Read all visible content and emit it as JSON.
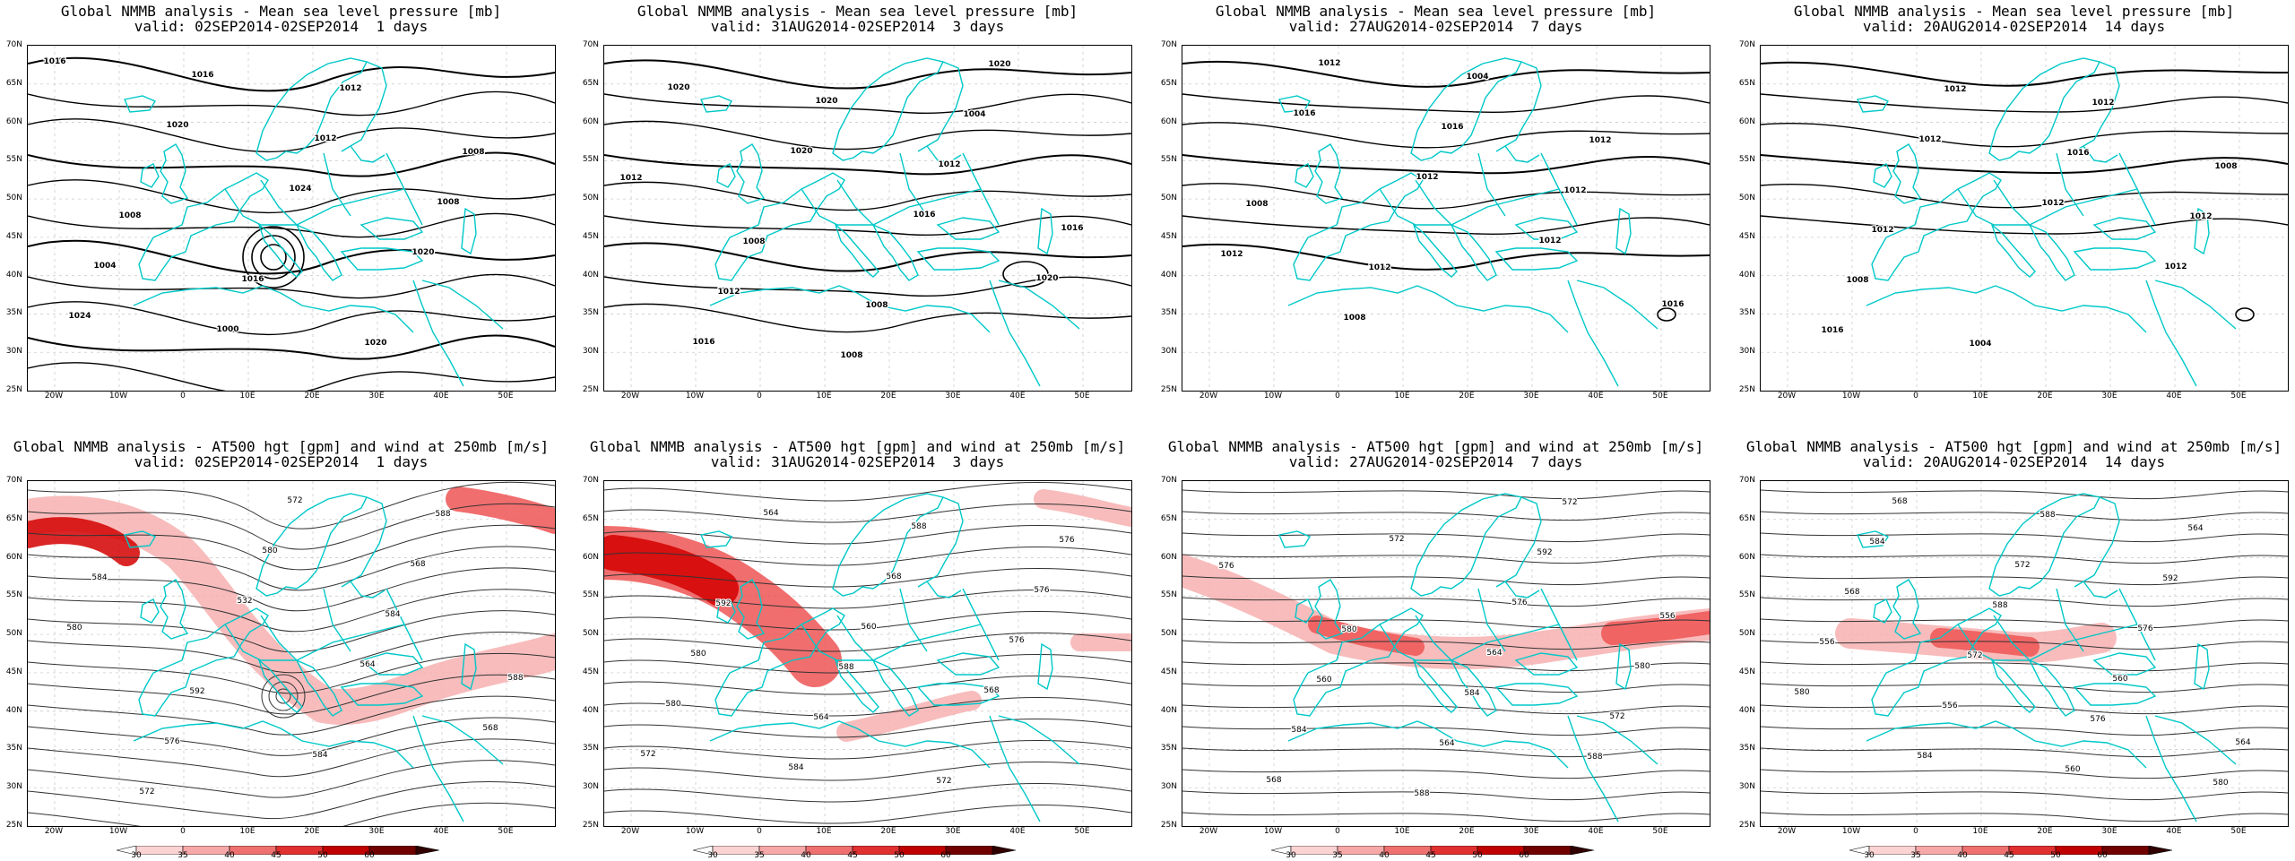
{
  "colors": {
    "coast": "#00c8c8",
    "contour": "#000000",
    "wind_light": "#f7b0b0",
    "wind_mid": "#ee5555",
    "wind_strong": "#d40000",
    "grid": "#cccccc"
  },
  "axes": {
    "lat_labels": [
      "70N",
      "65N",
      "60N",
      "55N",
      "50N",
      "45N",
      "40N",
      "35N",
      "30N",
      "25N"
    ],
    "lon_labels": [
      "20W",
      "10W",
      "0",
      "10E",
      "20E",
      "30E",
      "40E",
      "50E"
    ]
  },
  "colorbar": {
    "labels": [
      "30",
      "35",
      "40",
      "45",
      "50",
      "60"
    ]
  },
  "top_row": [
    {
      "title": "Global NMMB analysis - Mean sea level pressure [mb]",
      "subtitle": "valid: 02SEP2014-02SEP2014  1 days",
      "contour_labels": [
        "1016",
        "1020",
        "1024",
        "1020",
        "1024",
        "1016",
        "1012",
        "1008",
        "1004",
        "1000",
        "1012",
        "1008",
        "1008",
        "1016",
        "1020"
      ]
    },
    {
      "title": "Global NMMB analysis - Mean sea level pressure [mb]",
      "subtitle": "valid: 31AUG2014-02SEP2014  3 days",
      "contour_labels": [
        "1020",
        "1020",
        "1016",
        "1020",
        "1016",
        "1020",
        "1012",
        "1016",
        "1012",
        "1008",
        "1004",
        "1012",
        "1008",
        "1008",
        "1020"
      ]
    },
    {
      "title": "Global NMMB analysis - Mean sea level pressure [mb]",
      "subtitle": "valid: 27AUG2014-02SEP2014  7 days",
      "contour_labels": [
        "1016",
        "1012",
        "1012",
        "1016",
        "1012",
        "1016",
        "1012",
        "1012",
        "1008",
        "1004",
        "1012",
        "1008",
        "1012"
      ]
    },
    {
      "title": "Global NMMB analysis - Mean sea level pressure [mb]",
      "subtitle": "valid: 20AUG2014-02SEP2014  14 days",
      "contour_labels": [
        "1012",
        "1012",
        "1012",
        "1016",
        "1012",
        "1016",
        "1012",
        "1008",
        "1004",
        "1012",
        "1008",
        "1012"
      ]
    }
  ],
  "bottom_row": [
    {
      "title": "Global NMMB analysis - AT500 hgt [gpm] and wind at 250mb [m/s]",
      "subtitle": "valid: 02SEP2014-02SEP2014  1 days",
      "contour_labels": [
        "532",
        "564",
        "568",
        "572",
        "580",
        "584",
        "588",
        "576",
        "572",
        "568",
        "580",
        "592",
        "584",
        "588",
        "584"
      ]
    },
    {
      "title": "Global NMMB analysis - AT500 hgt [gpm] and wind at 250mb [m/s]",
      "subtitle": "valid: 31AUG2014-02SEP2014  3 days",
      "contour_labels": [
        "560",
        "568",
        "572",
        "564",
        "568",
        "576",
        "580",
        "584",
        "588",
        "576",
        "580",
        "564",
        "572",
        "576",
        "592",
        "588"
      ]
    },
    {
      "title": "Global NMMB analysis - AT500 hgt [gpm] and wind at 250mb [m/s]",
      "subtitle": "valid: 27AUG2014-02SEP2014  7 days",
      "contour_labels": [
        "564",
        "572",
        "568",
        "572",
        "576",
        "580",
        "584",
        "588",
        "592",
        "556",
        "560",
        "564",
        "572",
        "576",
        "580",
        "584",
        "588"
      ]
    },
    {
      "title": "Global NMMB analysis - AT500 hgt [gpm] and wind at 250mb [m/s]",
      "subtitle": "valid: 20AUG2014-02SEP2014  14 days",
      "contour_labels": [
        "560",
        "564",
        "568",
        "572",
        "576",
        "580",
        "584",
        "588",
        "592",
        "556",
        "556",
        "560",
        "564",
        "568",
        "572",
        "576",
        "580",
        "584",
        "588"
      ]
    }
  ]
}
